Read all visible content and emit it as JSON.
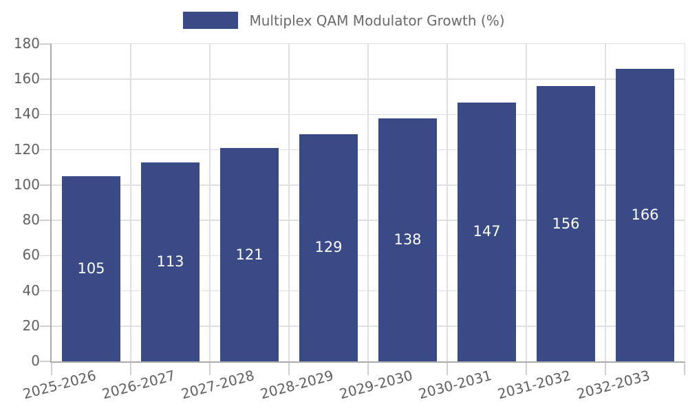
{
  "legend": {
    "label": "Multiplex QAM Modulator Growth (%)"
  },
  "chart_data": {
    "type": "bar",
    "title": "Multiplex QAM Modulator Growth (%)",
    "categories": [
      "2025-2026",
      "2026-2027",
      "2027-2028",
      "2028-2029",
      "2029-2030",
      "2030-2031",
      "2031-2032",
      "2032-2033"
    ],
    "values": [
      105,
      113,
      121,
      129,
      138,
      147,
      156,
      166
    ],
    "value_labels": [
      "105",
      "113",
      "121",
      "129",
      "138",
      "147",
      "156",
      "166"
    ],
    "xlabel": "",
    "ylabel": "",
    "ylim": [
      0,
      180
    ],
    "yticks": [
      0,
      20,
      40,
      60,
      80,
      100,
      120,
      140,
      160,
      180
    ],
    "ytick_labels": [
      "0",
      "20",
      "40",
      "60",
      "80",
      "100",
      "120",
      "140",
      "160",
      "180"
    ],
    "grid": true,
    "legend_position": "top-center",
    "xtick_rotation_deg": 15,
    "colors": {
      "bar": "#3a4a87",
      "value_label": "#ffffff",
      "grid": "#e0e0e0",
      "axis": "#ababab",
      "tick_mark": "#cfcfcf",
      "tick_text": "#606060",
      "legend_text": "#6a6a6a",
      "background": "#ffffff"
    }
  }
}
